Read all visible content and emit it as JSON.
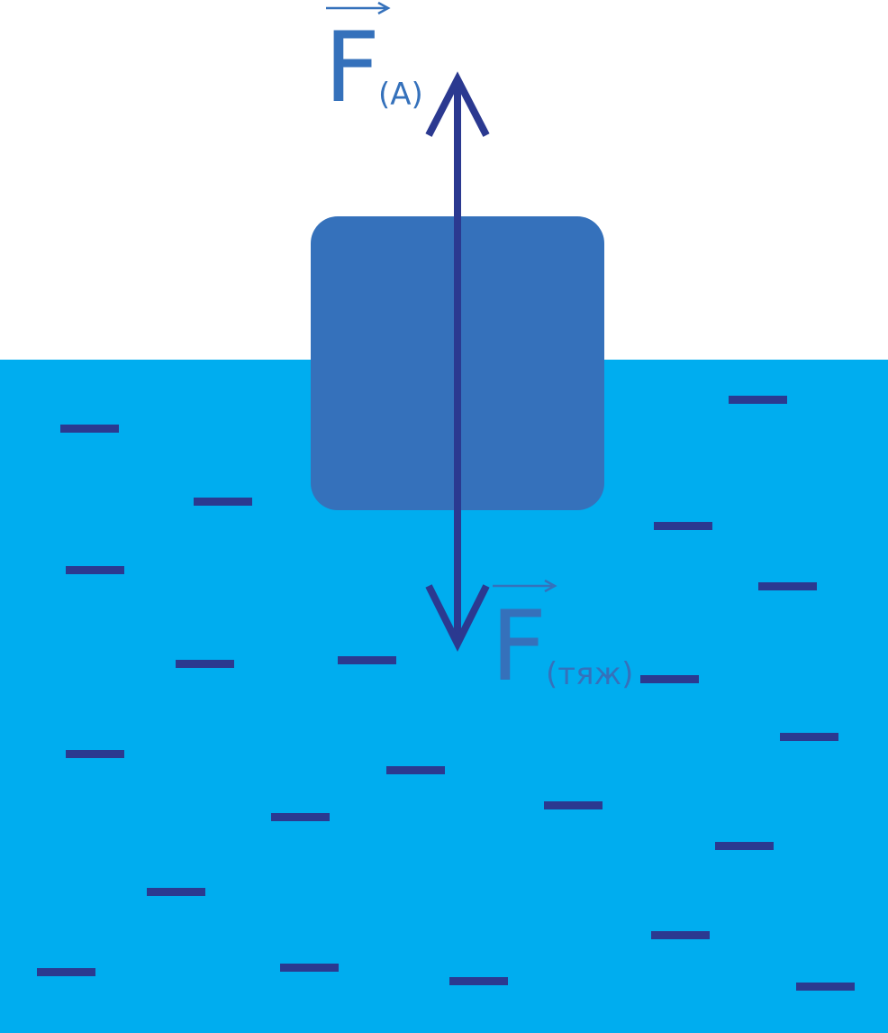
{
  "diagram": {
    "buoyant_force": {
      "symbol": "F",
      "subscript": "(A)"
    },
    "gravity_force": {
      "symbol": "F",
      "subscript": "(тяж)"
    }
  },
  "colors": {
    "background": "#ffffff",
    "water": "#00adef",
    "object": "#3571bb",
    "force_arrow": "#2b3990",
    "water_dash": "#2b3990",
    "label": "#3571bb",
    "vector_arrow": "#3571bb"
  }
}
